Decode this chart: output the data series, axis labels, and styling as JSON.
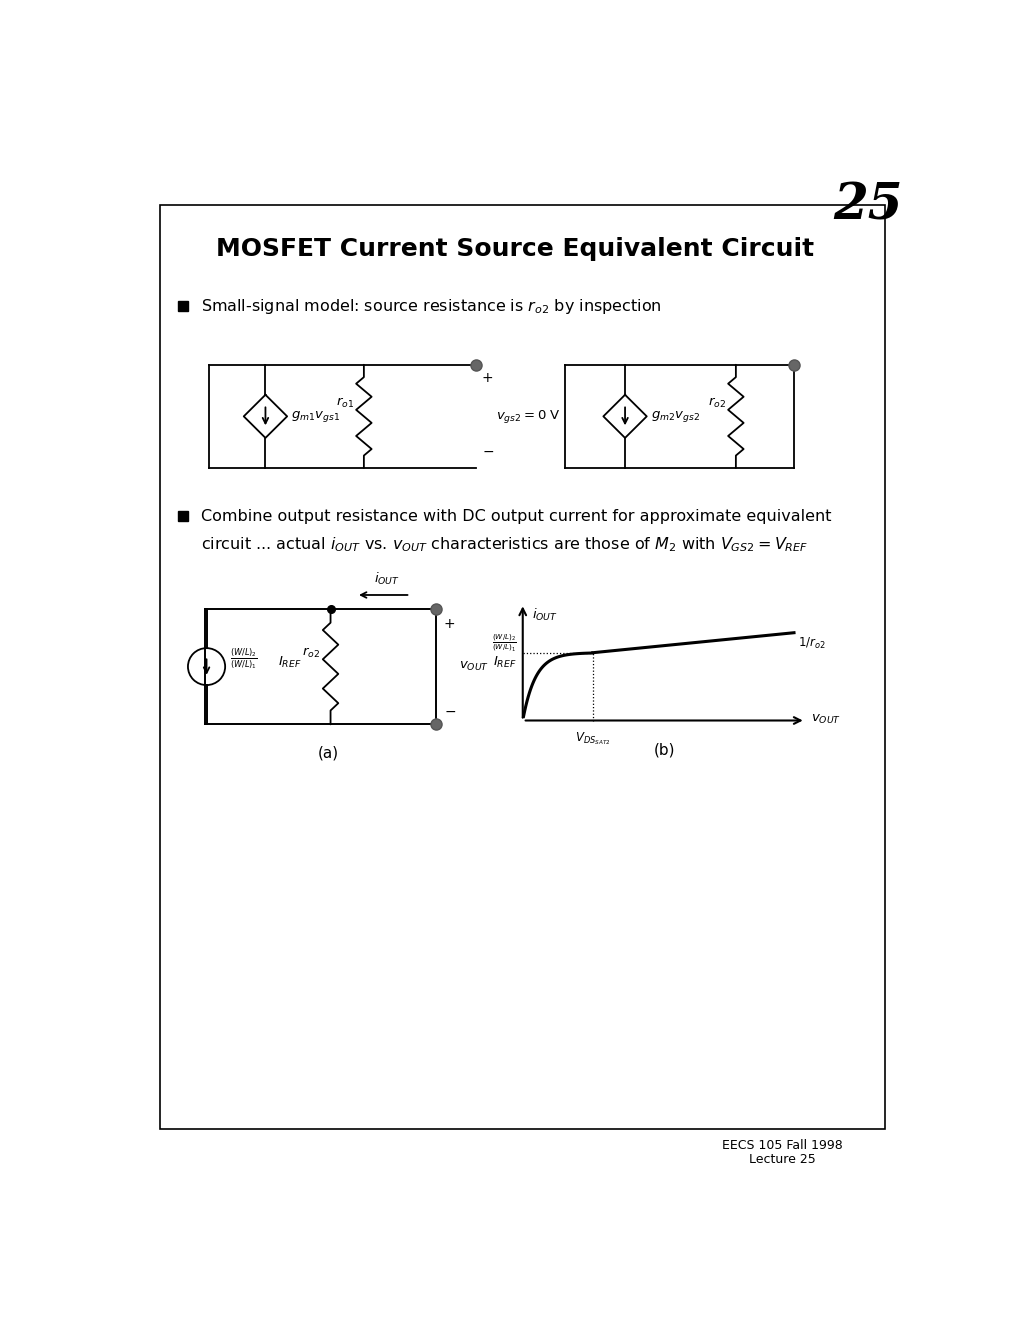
{
  "title": "MOSFET Current Source Equivalent Circuit",
  "page_number": "25",
  "footer": "EECS 105 Fall 1998\nLecture 25",
  "bg_color": "#ffffff",
  "frame_color": "#000000",
  "text_color": "#000000"
}
